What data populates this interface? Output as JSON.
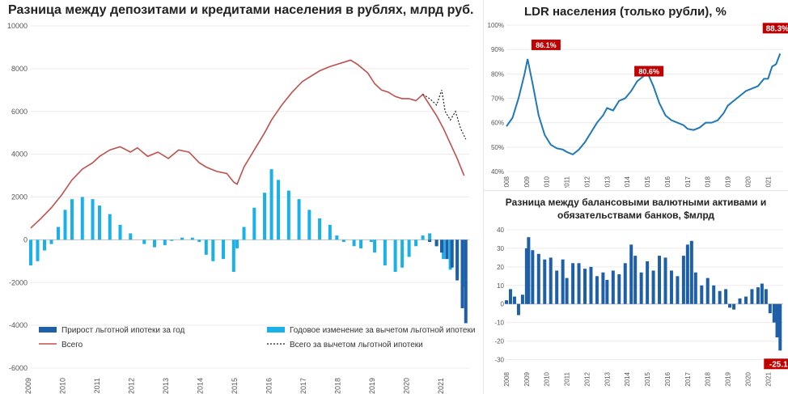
{
  "chart_data": [
    {
      "type": "bar",
      "title": "Разница между депозитами и кредитами населения в рублях, млрд руб.",
      "x_ticks": [
        "2009",
        "2010",
        "2011",
        "2012",
        "2013",
        "2014",
        "2015",
        "2016",
        "2017",
        "2018",
        "2019",
        "2020",
        "2021"
      ],
      "y_ticks": [
        "10000",
        "8000",
        "6000",
        "4000",
        "2000",
        "0",
        "-2000",
        "-4000",
        "-6000"
      ],
      "ylim": [
        -6000,
        10000
      ],
      "xlim": [
        2009,
        2021.75
      ],
      "legend": {
        "bar_mortgage": "Прирост льготной ипотеки за год",
        "bar_annual": "Годовое изменение за вычетом льготной ипотеки",
        "line_total": "Всего",
        "line_ex": "Всего за вычетом льготной ипотеки"
      },
      "colors": {
        "line_total": "#c0504d",
        "bar_annual": "#1ab1e8",
        "bar_mortgage": "#1f5fa8",
        "line_ex": "#222222"
      },
      "line_total": [
        [
          2009,
          550
        ],
        [
          2009.3,
          1000
        ],
        [
          2009.6,
          1500
        ],
        [
          2009.9,
          2100
        ],
        [
          2010.2,
          2800
        ],
        [
          2010.5,
          3300
        ],
        [
          2010.8,
          3600
        ],
        [
          2011.0,
          3900
        ],
        [
          2011.3,
          4200
        ],
        [
          2011.6,
          4350
        ],
        [
          2011.9,
          4100
        ],
        [
          2012.1,
          4300
        ],
        [
          2012.4,
          3900
        ],
        [
          2012.7,
          4100
        ],
        [
          2013.0,
          3800
        ],
        [
          2013.3,
          4200
        ],
        [
          2013.6,
          4100
        ],
        [
          2013.9,
          3600
        ],
        [
          2014.1,
          3400
        ],
        [
          2014.4,
          3200
        ],
        [
          2014.7,
          3100
        ],
        [
          2014.9,
          2700
        ],
        [
          2015.0,
          2600
        ],
        [
          2015.2,
          3400
        ],
        [
          2015.5,
          4200
        ],
        [
          2015.8,
          5000
        ],
        [
          2016.0,
          5600
        ],
        [
          2016.3,
          6300
        ],
        [
          2016.6,
          6900
        ],
        [
          2016.9,
          7400
        ],
        [
          2017.1,
          7600
        ],
        [
          2017.4,
          7900
        ],
        [
          2017.7,
          8100
        ],
        [
          2017.9,
          8200
        ],
        [
          2018.1,
          8300
        ],
        [
          2018.3,
          8400
        ],
        [
          2018.5,
          8200
        ],
        [
          2018.8,
          7800
        ],
        [
          2019.0,
          7300
        ],
        [
          2019.2,
          7000
        ],
        [
          2019.4,
          6900
        ],
        [
          2019.6,
          6700
        ],
        [
          2019.8,
          6600
        ],
        [
          2020.0,
          6600
        ],
        [
          2020.2,
          6500
        ],
        [
          2020.4,
          6800
        ],
        [
          2020.6,
          6300
        ],
        [
          2020.8,
          5800
        ],
        [
          2021.0,
          5200
        ],
        [
          2021.2,
          4500
        ],
        [
          2021.4,
          3800
        ],
        [
          2021.6,
          3000
        ]
      ],
      "line_ex": [
        [
          2020.4,
          6800
        ],
        [
          2020.6,
          6600
        ],
        [
          2020.8,
          6300
        ],
        [
          2020.95,
          7000
        ],
        [
          2021.05,
          6000
        ],
        [
          2021.2,
          5600
        ],
        [
          2021.35,
          6000
        ],
        [
          2021.5,
          5200
        ],
        [
          2021.65,
          4700
        ]
      ],
      "bars_annual": [
        [
          2009.0,
          -1200
        ],
        [
          2009.2,
          -1000
        ],
        [
          2009.4,
          -500
        ],
        [
          2009.6,
          -200
        ],
        [
          2009.8,
          600
        ],
        [
          2010.0,
          1400
        ],
        [
          2010.2,
          1900
        ],
        [
          2010.5,
          2000
        ],
        [
          2010.8,
          1900
        ],
        [
          2011.0,
          1600
        ],
        [
          2011.3,
          1200
        ],
        [
          2011.6,
          700
        ],
        [
          2011.9,
          300
        ],
        [
          2012.1,
          0
        ],
        [
          2012.3,
          -200
        ],
        [
          2012.6,
          -350
        ],
        [
          2012.9,
          -250
        ],
        [
          2013.1,
          -50
        ],
        [
          2013.4,
          100
        ],
        [
          2013.7,
          100
        ],
        [
          2013.9,
          -100
        ],
        [
          2014.1,
          -700
        ],
        [
          2014.3,
          -1000
        ],
        [
          2014.6,
          -900
        ],
        [
          2014.9,
          -1500
        ],
        [
          2015.0,
          -400
        ],
        [
          2015.2,
          600
        ],
        [
          2015.5,
          1500
        ],
        [
          2015.8,
          2200
        ],
        [
          2016.0,
          3300
        ],
        [
          2016.2,
          2800
        ],
        [
          2016.5,
          2300
        ],
        [
          2016.8,
          1900
        ],
        [
          2017.1,
          1400
        ],
        [
          2017.4,
          1000
        ],
        [
          2017.7,
          700
        ],
        [
          2017.9,
          200
        ],
        [
          2018.1,
          -100
        ],
        [
          2018.4,
          -300
        ],
        [
          2018.6,
          -400
        ],
        [
          2018.9,
          -100
        ],
        [
          2019.0,
          -600
        ],
        [
          2019.3,
          -1200
        ],
        [
          2019.6,
          -1500
        ],
        [
          2019.8,
          -1300
        ],
        [
          2020.0,
          -800
        ],
        [
          2020.2,
          -300
        ],
        [
          2020.4,
          200
        ],
        [
          2020.6,
          300
        ],
        [
          2020.8,
          -300
        ],
        [
          2021.0,
          -900
        ],
        [
          2021.2,
          -1400
        ],
        [
          2021.4,
          -1700
        ],
        [
          2021.6,
          -2200
        ]
      ],
      "bars_mortgage": [
        [
          2020.6,
          -100
        ],
        [
          2020.8,
          -300
        ],
        [
          2020.95,
          -600
        ],
        [
          2021.1,
          -900
        ],
        [
          2021.25,
          -1300
        ],
        [
          2021.4,
          -1900
        ],
        [
          2021.55,
          -3200
        ],
        [
          2021.65,
          -3900
        ]
      ]
    },
    {
      "type": "line",
      "title": "LDR населения (только рубли), %",
      "x_ticks": [
        "2008",
        "2009",
        "2010",
        "2011",
        "2012",
        "2013",
        "2014",
        "2015",
        "2016",
        "2017",
        "2018",
        "2019",
        "2020",
        "2021"
      ],
      "y_ticks": [
        "100%",
        "90%",
        "80%",
        "70%",
        "60%",
        "50%",
        "40%"
      ],
      "ylim": [
        40,
        100
      ],
      "xlim": [
        2008,
        2021.75
      ],
      "color": "#1f78b8",
      "labels": [
        {
          "text": "86.1%",
          "x": 2009,
          "y": 86.1
        },
        {
          "text": "80.6%",
          "x": 2015,
          "y": 80.6
        },
        {
          "text": "88.3%",
          "x": 2021.7,
          "y": 88.3
        }
      ],
      "points": [
        [
          2008.0,
          58.5
        ],
        [
          2008.3,
          62
        ],
        [
          2008.6,
          70
        ],
        [
          2008.9,
          80
        ],
        [
          2009.05,
          86.1
        ],
        [
          2009.3,
          76
        ],
        [
          2009.6,
          63
        ],
        [
          2009.9,
          55
        ],
        [
          2010.2,
          51
        ],
        [
          2010.5,
          49.5
        ],
        [
          2010.8,
          49
        ],
        [
          2011.0,
          48
        ],
        [
          2011.3,
          47
        ],
        [
          2011.6,
          49
        ],
        [
          2011.9,
          52
        ],
        [
          2012.2,
          56
        ],
        [
          2012.5,
          60
        ],
        [
          2012.8,
          63
        ],
        [
          2013.0,
          66
        ],
        [
          2013.3,
          65
        ],
        [
          2013.6,
          69
        ],
        [
          2013.9,
          70
        ],
        [
          2014.2,
          73
        ],
        [
          2014.5,
          77
        ],
        [
          2014.8,
          79
        ],
        [
          2015.0,
          80.6
        ],
        [
          2015.3,
          75
        ],
        [
          2015.6,
          68
        ],
        [
          2015.9,
          63
        ],
        [
          2016.2,
          61
        ],
        [
          2016.5,
          60
        ],
        [
          2016.8,
          59
        ],
        [
          2017.0,
          57.5
        ],
        [
          2017.3,
          57
        ],
        [
          2017.6,
          58
        ],
        [
          2017.9,
          60
        ],
        [
          2018.2,
          60
        ],
        [
          2018.5,
          61
        ],
        [
          2018.8,
          64
        ],
        [
          2019.0,
          67
        ],
        [
          2019.3,
          69
        ],
        [
          2019.6,
          71
        ],
        [
          2019.9,
          73
        ],
        [
          2020.2,
          74
        ],
        [
          2020.5,
          75
        ],
        [
          2020.8,
          78
        ],
        [
          2021.0,
          78
        ],
        [
          2021.2,
          83
        ],
        [
          2021.4,
          84
        ],
        [
          2021.6,
          88.3
        ]
      ]
    },
    {
      "type": "bar",
      "title": "Разница между балансовыми валютными активами и обязательствами банков, $млрд",
      "x_ticks": [
        "2008",
        "2009",
        "2010",
        "2011",
        "2012",
        "2013",
        "2014",
        "2015",
        "2016",
        "2017",
        "2018",
        "2019",
        "2020",
        "2021"
      ],
      "y_ticks": [
        "40",
        "30",
        "20",
        "10",
        "0",
        "-10",
        "-20",
        "-30"
      ],
      "ylim": [
        -35,
        40
      ],
      "xlim": [
        2008,
        2021.75
      ],
      "color": "#1f5fa8",
      "label": {
        "text": "-25.1",
        "x": 2021.6,
        "y": -25.1
      },
      "values": [
        [
          2008.0,
          2
        ],
        [
          2008.2,
          8
        ],
        [
          2008.4,
          4
        ],
        [
          2008.6,
          -6
        ],
        [
          2008.8,
          5
        ],
        [
          2009.0,
          30
        ],
        [
          2009.1,
          36
        ],
        [
          2009.3,
          29
        ],
        [
          2009.6,
          27
        ],
        [
          2009.9,
          24
        ],
        [
          2010.2,
          25
        ],
        [
          2010.5,
          18
        ],
        [
          2010.8,
          24
        ],
        [
          2011.0,
          14
        ],
        [
          2011.3,
          22
        ],
        [
          2011.6,
          22
        ],
        [
          2011.9,
          19
        ],
        [
          2012.2,
          20
        ],
        [
          2012.5,
          15
        ],
        [
          2012.8,
          17
        ],
        [
          2013.0,
          13
        ],
        [
          2013.3,
          18
        ],
        [
          2013.6,
          16
        ],
        [
          2013.9,
          22
        ],
        [
          2014.2,
          32
        ],
        [
          2014.4,
          26
        ],
        [
          2014.7,
          17
        ],
        [
          2015.0,
          23
        ],
        [
          2015.3,
          18
        ],
        [
          2015.6,
          26
        ],
        [
          2015.9,
          25
        ],
        [
          2016.2,
          18
        ],
        [
          2016.5,
          15
        ],
        [
          2016.8,
          26
        ],
        [
          2017.0,
          32
        ],
        [
          2017.2,
          34
        ],
        [
          2017.4,
          17
        ],
        [
          2017.7,
          10
        ],
        [
          2018.0,
          14
        ],
        [
          2018.3,
          10
        ],
        [
          2018.6,
          7
        ],
        [
          2018.9,
          8
        ],
        [
          2019.1,
          -2
        ],
        [
          2019.3,
          -3
        ],
        [
          2019.6,
          3
        ],
        [
          2019.9,
          4
        ],
        [
          2020.2,
          8
        ],
        [
          2020.5,
          9
        ],
        [
          2020.7,
          11
        ],
        [
          2020.9,
          8
        ],
        [
          2021.1,
          -5
        ],
        [
          2021.3,
          -10
        ],
        [
          2021.45,
          -18
        ],
        [
          2021.6,
          -25.1
        ]
      ]
    }
  ]
}
